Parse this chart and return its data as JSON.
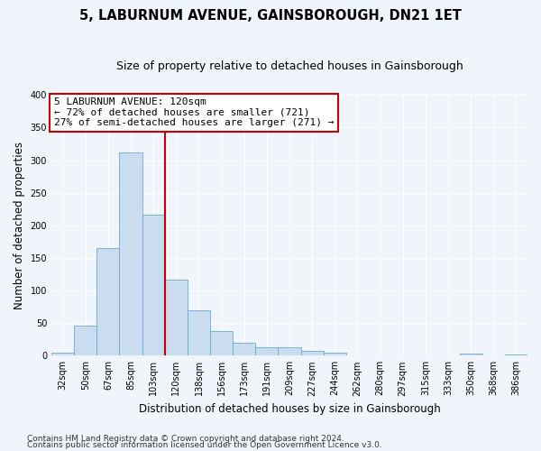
{
  "title": "5, LABURNUM AVENUE, GAINSBOROUGH, DN21 1ET",
  "subtitle": "Size of property relative to detached houses in Gainsborough",
  "xlabel": "Distribution of detached houses by size in Gainsborough",
  "ylabel": "Number of detached properties",
  "bin_labels": [
    "32sqm",
    "50sqm",
    "67sqm",
    "85sqm",
    "103sqm",
    "120sqm",
    "138sqm",
    "156sqm",
    "173sqm",
    "191sqm",
    "209sqm",
    "227sqm",
    "244sqm",
    "262sqm",
    "280sqm",
    "297sqm",
    "315sqm",
    "333sqm",
    "350sqm",
    "368sqm",
    "386sqm"
  ],
  "bar_values": [
    5,
    46,
    165,
    312,
    217,
    117,
    69,
    38,
    20,
    13,
    13,
    7,
    4,
    0,
    0,
    0,
    0,
    0,
    3,
    0,
    2
  ],
  "bar_color": "#c9dcf0",
  "bar_edge_color": "#6aaad4",
  "property_line_label": "5 LABURNUM AVENUE: 120sqm",
  "annotation_line1": "← 72% of detached houses are smaller (721)",
  "annotation_line2": "27% of semi-detached houses are larger (271) →",
  "annotation_box_color": "#ffffff",
  "annotation_box_edge_color": "#cc0000",
  "vline_color": "#cc0000",
  "ylim": [
    0,
    400
  ],
  "yticks": [
    0,
    50,
    100,
    150,
    200,
    250,
    300,
    350,
    400
  ],
  "footnote1": "Contains HM Land Registry data © Crown copyright and database right 2024.",
  "footnote2": "Contains public sector information licensed under the Open Government Licence v3.0.",
  "bg_color": "#f0f5fb",
  "plot_bg_color": "#f0f5fb",
  "grid_color": "#ffffff",
  "title_fontsize": 10.5,
  "subtitle_fontsize": 9,
  "axis_label_fontsize": 8.5,
  "tick_fontsize": 7,
  "annotation_fontsize": 8,
  "footnote_fontsize": 6.5
}
